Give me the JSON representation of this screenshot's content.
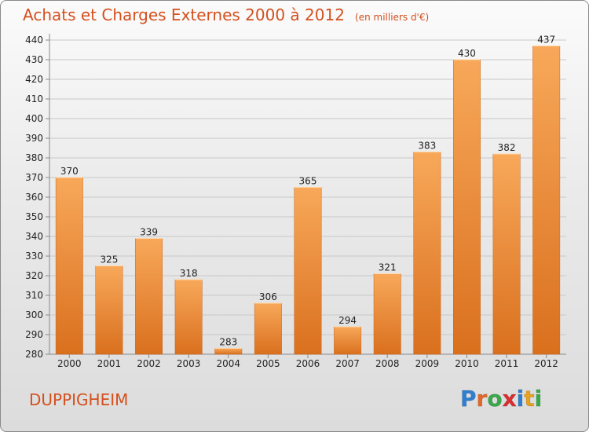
{
  "title": "Achats et Charges Externes 2000 à 2012",
  "unit": "(en milliers d'€)",
  "commune": "DUPPIGHEIM",
  "logo": {
    "letters": [
      "P",
      "r",
      "o",
      "x",
      "i",
      "t",
      "i"
    ],
    "colors": [
      "#2f7fd0",
      "#e0692a",
      "#38a94a",
      "#d92f2f",
      "#2f7fd0",
      "#e8a21c",
      "#38a94a"
    ]
  },
  "colors": {
    "bar_light": "#f8a85a",
    "bar_dark": "#d9701e",
    "grid": "#c8c8c8",
    "title": "#d4501e"
  },
  "chart_data": {
    "type": "bar",
    "categories": [
      "2000",
      "2001",
      "2002",
      "2003",
      "2004",
      "2005",
      "2006",
      "2007",
      "2008",
      "2009",
      "2010",
      "2011",
      "2012"
    ],
    "values": [
      370,
      325,
      339,
      318,
      283,
      306,
      365,
      294,
      321,
      383,
      430,
      382,
      437
    ],
    "ylim": [
      280,
      440
    ],
    "yticks": [
      280,
      290,
      300,
      310,
      320,
      330,
      340,
      350,
      360,
      370,
      380,
      390,
      400,
      410,
      420,
      430,
      440
    ],
    "grid": true,
    "title": "Achats et Charges Externes 2000 à 2012",
    "ylabel": "",
    "xlabel": ""
  }
}
